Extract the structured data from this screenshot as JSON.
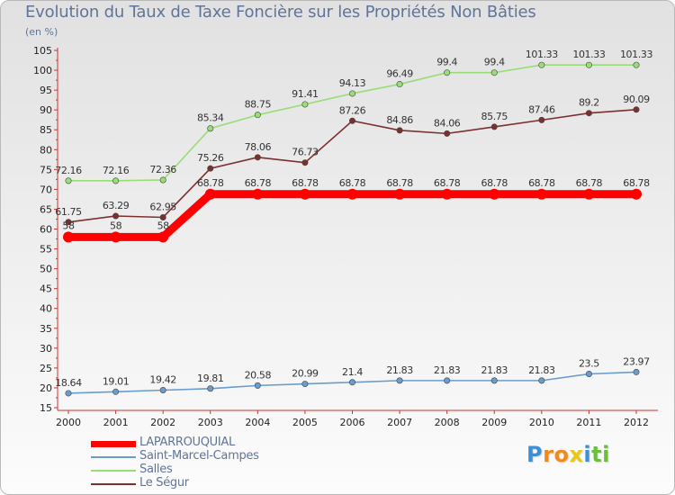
{
  "header": {
    "title": "Evolution du Taux de Taxe Foncière sur les Propriétés Non Bâties",
    "subtitle": "(en %)"
  },
  "chart_data": {
    "type": "line",
    "title": "Evolution du Taux de Taxe Foncière sur les Propriétés Non Bâties",
    "ylabel": "(en %)",
    "xlabel": "",
    "ylim": [
      15,
      105
    ],
    "ytick_step": 5,
    "grid": false,
    "legend_position": "bottom-left",
    "categories": [
      "2000",
      "2001",
      "2002",
      "2003",
      "2004",
      "2005",
      "2006",
      "2007",
      "2008",
      "2009",
      "2010",
      "2011",
      "2012"
    ],
    "series": [
      {
        "name": "LAPARROUQUIAL",
        "color": "#ff0000",
        "values": [
          58,
          58,
          58,
          68.78,
          68.78,
          68.78,
          68.78,
          68.78,
          68.78,
          68.78,
          68.78,
          68.78,
          68.78
        ],
        "labels": [
          "58",
          "58",
          "58",
          "68.78",
          "68.78",
          "68.78",
          "68.78",
          "68.78",
          "68.78",
          "68.78",
          "68.78",
          "68.78",
          "68.78"
        ]
      },
      {
        "name": "Saint-Marcel-Campes",
        "color": "#6a9ccc",
        "values": [
          18.64,
          19.01,
          19.42,
          19.81,
          20.58,
          20.99,
          21.4,
          21.83,
          21.83,
          21.83,
          21.83,
          23.5,
          23.97
        ],
        "labels": [
          "18.64",
          "19.01",
          "19.42",
          "19.81",
          "20.58",
          "20.99",
          "21.4",
          "21.83",
          "21.83",
          "21.83",
          "21.83",
          "23.5",
          "23.97"
        ]
      },
      {
        "name": "Salles",
        "color": "#99dd77",
        "values": [
          72.16,
          72.16,
          72.36,
          85.34,
          88.75,
          91.41,
          94.13,
          96.49,
          99.4,
          99.4,
          101.33,
          101.33,
          101.33
        ],
        "labels": [
          "72.16",
          "72.16",
          "72.36",
          "85.34",
          "88.75",
          "91.41",
          "94.13",
          "96.49",
          "99.4",
          "99.4",
          "101.33",
          "101.33",
          "101.33"
        ]
      },
      {
        "name": "Le Ségur",
        "color": "#7b3030",
        "values": [
          61.75,
          63.29,
          62.95,
          75.26,
          78.06,
          76.73,
          87.26,
          84.86,
          84.06,
          85.75,
          87.46,
          89.2,
          90.09
        ],
        "labels": [
          "61.75",
          "63.29",
          "62.95",
          "75.26",
          "78.06",
          "76.73",
          "87.26",
          "84.86",
          "84.06",
          "85.75",
          "87.46",
          "89.2",
          "90.09"
        ]
      }
    ]
  },
  "logo": {
    "letters": [
      "P",
      "r",
      "o",
      "x",
      "i",
      "t",
      "i"
    ],
    "colors": [
      "#3e8fd6",
      "#f08a1c",
      "#f08a1c",
      "#e8c810",
      "#3e8fd6",
      "#6bbf3a",
      "#6bbf3a"
    ]
  }
}
